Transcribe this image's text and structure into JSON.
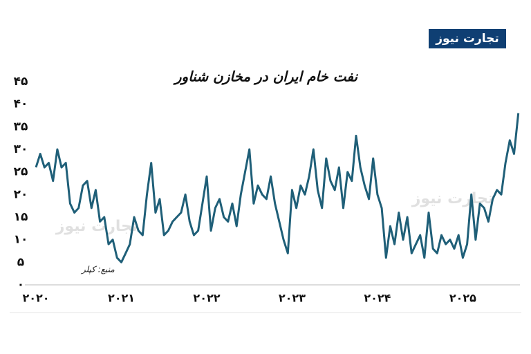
{
  "brand": "تجارت نیوز",
  "chart_data": {
    "type": "line",
    "title": "نفت خام ایران در مخازن شناور",
    "source": "منبع: کپلر",
    "x": [
      2020,
      2020.05,
      2020.1,
      2020.15,
      2020.2,
      2020.25,
      2020.3,
      2020.35,
      2020.4,
      2020.45,
      2020.5,
      2020.55,
      2020.6,
      2020.65,
      2020.7,
      2020.75,
      2020.8,
      2020.85,
      2020.9,
      2020.95,
      2021,
      2021.05,
      2021.1,
      2021.15,
      2021.2,
      2021.25,
      2021.3,
      2021.35,
      2021.4,
      2021.45,
      2021.5,
      2021.55,
      2021.6,
      2021.65,
      2021.7,
      2021.75,
      2021.8,
      2021.85,
      2021.9,
      2021.95,
      2022,
      2022.05,
      2022.1,
      2022.15,
      2022.2,
      2022.25,
      2022.3,
      2022.35,
      2022.4,
      2022.45,
      2022.5,
      2022.55,
      2022.6,
      2022.65,
      2022.7,
      2022.75,
      2022.8,
      2022.85,
      2022.9,
      2022.95,
      2023,
      2023.05,
      2023.1,
      2023.15,
      2023.2,
      2023.25,
      2023.3,
      2023.35,
      2023.4,
      2023.45,
      2023.5,
      2023.55,
      2023.6,
      2023.65,
      2023.7,
      2023.75,
      2023.8,
      2023.85,
      2023.9,
      2023.95,
      2024,
      2024.05,
      2024.1,
      2024.15,
      2024.2,
      2024.25,
      2024.3,
      2024.35,
      2024.4,
      2024.45,
      2024.5,
      2024.55,
      2024.6,
      2024.65,
      2024.7,
      2024.75,
      2024.8,
      2024.85,
      2024.9,
      2024.95,
      2025,
      2025.05,
      2025.1,
      2025.15,
      2025.2,
      2025.25,
      2025.3,
      2025.35,
      2025.4,
      2025.45,
      2025.5,
      2025.55,
      2025.6,
      2025.65
    ],
    "series": [
      {
        "color": "#1f5f78",
        "values": [
          26,
          29,
          26,
          27,
          23,
          30,
          26,
          27,
          18,
          16,
          17,
          22,
          23,
          17,
          21,
          14,
          15,
          9,
          10,
          6,
          5,
          7,
          9,
          15,
          12,
          11,
          20,
          27,
          16,
          19,
          11,
          12,
          14,
          15,
          16,
          20,
          14,
          11,
          12,
          18,
          24,
          12,
          17,
          19,
          15,
          14,
          18,
          13,
          20,
          25,
          30,
          18,
          22,
          20,
          19,
          24,
          18,
          14,
          10,
          7,
          21,
          17,
          22,
          20,
          24,
          30,
          21,
          17,
          28,
          23,
          21,
          26,
          17,
          25,
          23,
          33,
          26,
          22,
          19,
          28,
          20,
          17,
          6,
          13,
          9,
          16,
          10,
          15,
          7,
          9,
          11,
          6,
          16,
          8,
          7,
          11,
          9,
          10,
          8,
          11,
          6,
          9,
          20,
          10,
          18,
          17,
          14,
          19,
          21,
          20,
          27,
          32,
          29,
          38
        ]
      }
    ],
    "xlim": [
      2020,
      2025.75
    ],
    "xticks": [
      {
        "value": 2020,
        "label": "۲۰۲۰"
      },
      {
        "value": 2021,
        "label": "۲۰۲۱"
      },
      {
        "value": 2022,
        "label": "۲۰۲۲"
      },
      {
        "value": 2023,
        "label": "۲۰۲۳"
      },
      {
        "value": 2024,
        "label": "۲۰۲۴"
      },
      {
        "value": 2025,
        "label": "۲۰۲۵"
      }
    ],
    "ylim": [
      0,
      45
    ],
    "yticks": [
      {
        "value": 0,
        "label": "۰"
      },
      {
        "value": 5,
        "label": "۵"
      },
      {
        "value": 10,
        "label": "۱۰"
      },
      {
        "value": 15,
        "label": "۱۵"
      },
      {
        "value": 20,
        "label": "۲۰"
      },
      {
        "value": 25,
        "label": "۲۵"
      },
      {
        "value": 30,
        "label": "۳۰"
      },
      {
        "value": 35,
        "label": "۳۵"
      },
      {
        "value": 40,
        "label": "۴۰"
      },
      {
        "value": 45,
        "label": "۴۵"
      }
    ]
  }
}
